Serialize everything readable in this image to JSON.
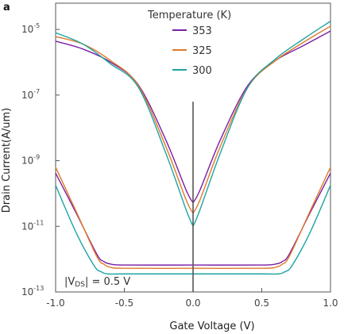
{
  "panel_label": "a",
  "chart_data": {
    "type": "line",
    "title": "",
    "xlabel": "Gate Voltage (V)",
    "ylabel": "Drain Current(A/um)",
    "xlim": [
      -1.0,
      1.0
    ],
    "ylim_log10": [
      -13,
      -4.2
    ],
    "yscale": "log",
    "x_ticks": [
      -1.0,
      -0.5,
      0.0,
      0.5,
      1.0
    ],
    "x_tick_labels": [
      "-1.0",
      "-0.5",
      "0.0",
      "0.5",
      "1.0"
    ],
    "y_ticks_log10": [
      -5,
      -7,
      -9,
      -11,
      -13
    ],
    "y_tick_bases": [
      "10",
      "10",
      "10",
      "10",
      "10"
    ],
    "y_tick_exponents": [
      "-5",
      "-7",
      "-9",
      "-11",
      "-13"
    ],
    "grid": false,
    "legend": {
      "title": "Temperature (K)",
      "placement": "top-center",
      "entries": [
        "353",
        "325",
        "300"
      ]
    },
    "annotation": {
      "prefix": "|V",
      "subscript": "DS",
      "suffix": "| = 0.5 V",
      "placement": "bottom-left"
    },
    "vertical_marker": {
      "x": 0.0,
      "y_top_log10": -7.2
    },
    "series": [
      {
        "name": "353",
        "color": "#7a1fa2",
        "branches": [
          {
            "x": [
              -1.0,
              -0.8,
              -0.6,
              -0.4,
              -0.2,
              -0.05,
              0.0
            ],
            "y_log10": [
              -5.36,
              -5.6,
              -6.0,
              -6.68,
              -8.35,
              -9.9,
              -10.28
            ]
          },
          {
            "x": [
              0.0,
              0.05,
              0.2,
              0.4,
              0.6,
              0.8,
              1.0
            ],
            "y_log10": [
              -10.28,
              -9.9,
              -8.35,
              -6.7,
              -5.95,
              -5.5,
              -5.05
            ]
          },
          {
            "x": [
              -1.0,
              -0.85,
              -0.7,
              -0.65,
              -0.6,
              -0.5,
              0.0,
              0.5,
              0.6,
              0.65,
              0.7,
              0.85,
              1.0
            ],
            "y_log10": [
              -9.38,
              -10.6,
              -11.85,
              -12.07,
              -12.15,
              -12.18,
              -12.18,
              -12.18,
              -12.15,
              -12.07,
              -11.85,
              -10.6,
              -9.38
            ]
          }
        ]
      },
      {
        "name": "325",
        "color": "#e07b2a",
        "branches": [
          {
            "x": [
              -1.0,
              -0.8,
              -0.6,
              -0.4,
              -0.2,
              -0.05,
              0.0
            ],
            "y_log10": [
              -5.22,
              -5.45,
              -5.95,
              -6.7,
              -8.55,
              -10.2,
              -10.6
            ]
          },
          {
            "x": [
              0.0,
              0.05,
              0.2,
              0.4,
              0.6,
              0.8,
              1.0
            ],
            "y_log10": [
              -10.6,
              -10.2,
              -8.55,
              -6.75,
              -5.95,
              -5.4,
              -4.9
            ]
          },
          {
            "x": [
              -1.0,
              -0.85,
              -0.7,
              -0.65,
              -0.6,
              -0.5,
              0.0,
              0.5,
              0.6,
              0.65,
              0.7,
              0.85,
              1.0
            ],
            "y_log10": [
              -9.2,
              -10.55,
              -11.92,
              -12.15,
              -12.25,
              -12.28,
              -12.28,
              -12.28,
              -12.25,
              -12.15,
              -11.92,
              -10.55,
              -9.2
            ]
          }
        ]
      },
      {
        "name": "300",
        "color": "#1fa3a3",
        "branches": [
          {
            "x": [
              -1.0,
              -0.8,
              -0.6,
              -0.4,
              -0.2,
              -0.05,
              0.0
            ],
            "y_log10": [
              -5.1,
              -5.45,
              -6.05,
              -6.75,
              -8.75,
              -10.5,
              -11.0
            ]
          },
          {
            "x": [
              0.0,
              0.05,
              0.2,
              0.4,
              0.6,
              0.8,
              1.0
            ],
            "y_log10": [
              -11.0,
              -10.5,
              -8.75,
              -6.75,
              -5.9,
              -5.3,
              -4.75
            ]
          },
          {
            "x": [
              -1.0,
              -0.85,
              -0.72,
              -0.67,
              -0.62,
              -0.5,
              0.0,
              0.5,
              0.62,
              0.67,
              0.72,
              0.85,
              1.0
            ],
            "y_log10": [
              -9.75,
              -11.2,
              -12.2,
              -12.38,
              -12.45,
              -12.45,
              -12.45,
              -12.45,
              -12.45,
              -12.38,
              -12.2,
              -11.2,
              -9.75
            ]
          }
        ]
      }
    ]
  }
}
